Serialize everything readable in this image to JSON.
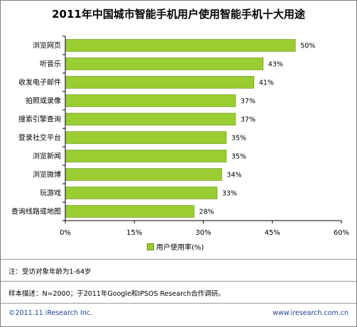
{
  "chart_data": {
    "type": "bar",
    "orientation": "horizontal",
    "title": "2011年中国城市智能手机用户使用智能手机十大用途",
    "categories": [
      "浏览网页",
      "听音乐",
      "收发电子邮件",
      "拍照或录像",
      "搜索引擎查询",
      "登录社交平台",
      "浏览新闻",
      "浏览微博",
      "玩游戏",
      "查询线路或地图"
    ],
    "series": [
      {
        "name": "用户使用率(%)",
        "values": [
          50,
          43,
          41,
          37,
          37,
          35,
          35,
          34,
          33,
          28
        ],
        "value_labels": [
          "50%",
          "43%",
          "41%",
          "37%",
          "37%",
          "35%",
          "35%",
          "34%",
          "33%",
          "28%"
        ]
      }
    ],
    "xlim": [
      0,
      60
    ],
    "xticks": [
      "0%",
      "15%",
      "30%",
      "45%",
      "60%"
    ],
    "grid": false,
    "legend_position": "bottom",
    "colors": {
      "bar": "#9acd32",
      "bar_edge": "#6b8f1f"
    }
  },
  "footer": {
    "note": "注：受访对象年龄为1-64岁",
    "sample": "样本描述：N=2000；于2011年Google和IPSOS Research合作调研。",
    "copyright": "©2011.11 iResearch Inc.",
    "website": "www.iresearch.com.cn"
  }
}
